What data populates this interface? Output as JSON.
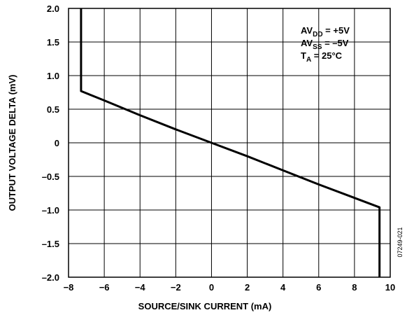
{
  "chart_data": {
    "type": "line",
    "xlabel": "SOURCE/SINK CURRENT (mA)",
    "ylabel": "OUTPUT VOLTAGE DELTA (mV)",
    "xlim": [
      -8,
      10
    ],
    "ylim": [
      -2.0,
      2.0
    ],
    "x_ticks": [
      -8,
      -6,
      -4,
      -2,
      0,
      2,
      4,
      6,
      8,
      10
    ],
    "x_tick_labels": [
      "−8",
      "−6",
      "−4",
      "−2",
      "0",
      "2",
      "4",
      "6",
      "8",
      "10"
    ],
    "y_ticks": [
      2.0,
      1.5,
      1.0,
      0.5,
      0,
      -0.5,
      -1.0,
      -1.5,
      -2.0
    ],
    "y_tick_labels": [
      "2.0",
      "1.5",
      "1.0",
      "0.5",
      "0",
      "–0.5",
      "–1.0",
      "–1.5",
      "–2.0"
    ],
    "grid": true,
    "series": [
      {
        "x": [
          -7.3,
          -7.3,
          -6.0,
          -4.0,
          -2.0,
          0.0,
          2.0,
          4.0,
          6.0,
          8.0,
          9.4,
          9.4
        ],
        "y": [
          2.0,
          0.77,
          0.63,
          0.41,
          0.2,
          0.0,
          -0.2,
          -0.41,
          -0.62,
          -0.82,
          -0.96,
          -2.0
        ]
      }
    ],
    "annotation": {
      "line1": {
        "text": "AV",
        "sub": "DD",
        "rest": " = +5V"
      },
      "line2": {
        "text": "AV",
        "sub": "SS",
        "rest": " = –5V"
      },
      "line3": {
        "text": "T",
        "sub": "A",
        "rest": " = 25°C"
      }
    },
    "figure_id": "07249-021"
  }
}
